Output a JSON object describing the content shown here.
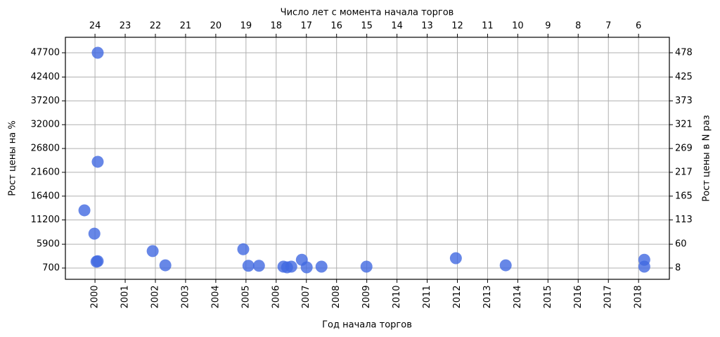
{
  "chart_data": {
    "type": "scatter",
    "title": "Число лет с момента начала торгов",
    "x_label": "Год начала торгов",
    "y_label": "Рост цены на %",
    "y2_label": "Рост цены в N раз",
    "color": "#4169e1",
    "grid": true,
    "xlim": [
      1999.02,
      2019.02
    ],
    "xticks": [
      2000,
      2001,
      2002,
      2003,
      2004,
      2005,
      2006,
      2007,
      2008,
      2009,
      2010,
      2011,
      2012,
      2013,
      2014,
      2015,
      2016,
      2017,
      2018
    ],
    "x2lim": [
      24.98,
      4.98
    ],
    "x2ticks": [
      24,
      23,
      22,
      21,
      20,
      19,
      18,
      17,
      16,
      15,
      14,
      13,
      12,
      11,
      10,
      9,
      8,
      7,
      6
    ],
    "ylim": [
      -1760,
      51080
    ],
    "yticks": [
      700,
      5900,
      11200,
      16400,
      21600,
      26800,
      32000,
      37200,
      42400,
      47700
    ],
    "y2lim": [
      -16.6,
      511.8
    ],
    "y2ticks": [
      8,
      60,
      113,
      165,
      217,
      269,
      321,
      373,
      425,
      478
    ],
    "x": [
      2000.09,
      2000.09,
      1999.65,
      1999.98,
      2000.09,
      2000.05,
      2001.91,
      2002.33,
      2004.91,
      2005.08,
      2005.43,
      2006.24,
      2006.36,
      2006.5,
      2006.85,
      2007.01,
      2007.5,
      2008.99,
      2011.95,
      2013.6,
      2018.19,
      2018.19
    ],
    "values": [
      47700,
      23900,
      13300,
      8200,
      2200,
      2100,
      4400,
      1300,
      4800,
      1200,
      1200,
      1000,
      850,
      1000,
      2500,
      850,
      1000,
      1000,
      2850,
      1300,
      2500,
      1000
    ]
  }
}
